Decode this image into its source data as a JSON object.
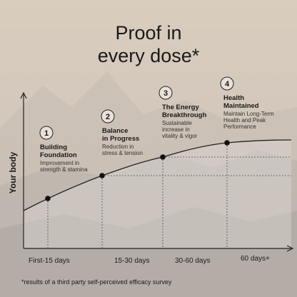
{
  "title": [
    "Proof in",
    "every dose*"
  ],
  "y_axis_label": "Your body",
  "x_labels": [
    "First-15 days",
    "15-30 days",
    "30-60 days",
    "60 days+"
  ],
  "steps": [
    {
      "number": "1",
      "title": [
        "Building",
        "Foundation"
      ],
      "description": [
        "Improvement in",
        "strength & stamina"
      ]
    },
    {
      "number": "2",
      "title": [
        "Balance",
        "in Progress"
      ],
      "description": [
        "Reduction in",
        "stress & tension"
      ]
    },
    {
      "number": "3",
      "title": [
        "The Energy",
        "Breakthrough"
      ],
      "description": [
        "Sustainable",
        "increase in",
        "vitality & vigor"
      ]
    },
    {
      "number": "4",
      "title": [
        "Health",
        "Maintained"
      ],
      "description": [
        "Maintain Long-Term",
        "Health and Peak",
        "Performance"
      ]
    }
  ],
  "footnote": "*results of a third party self-perceived efficacy survey"
}
